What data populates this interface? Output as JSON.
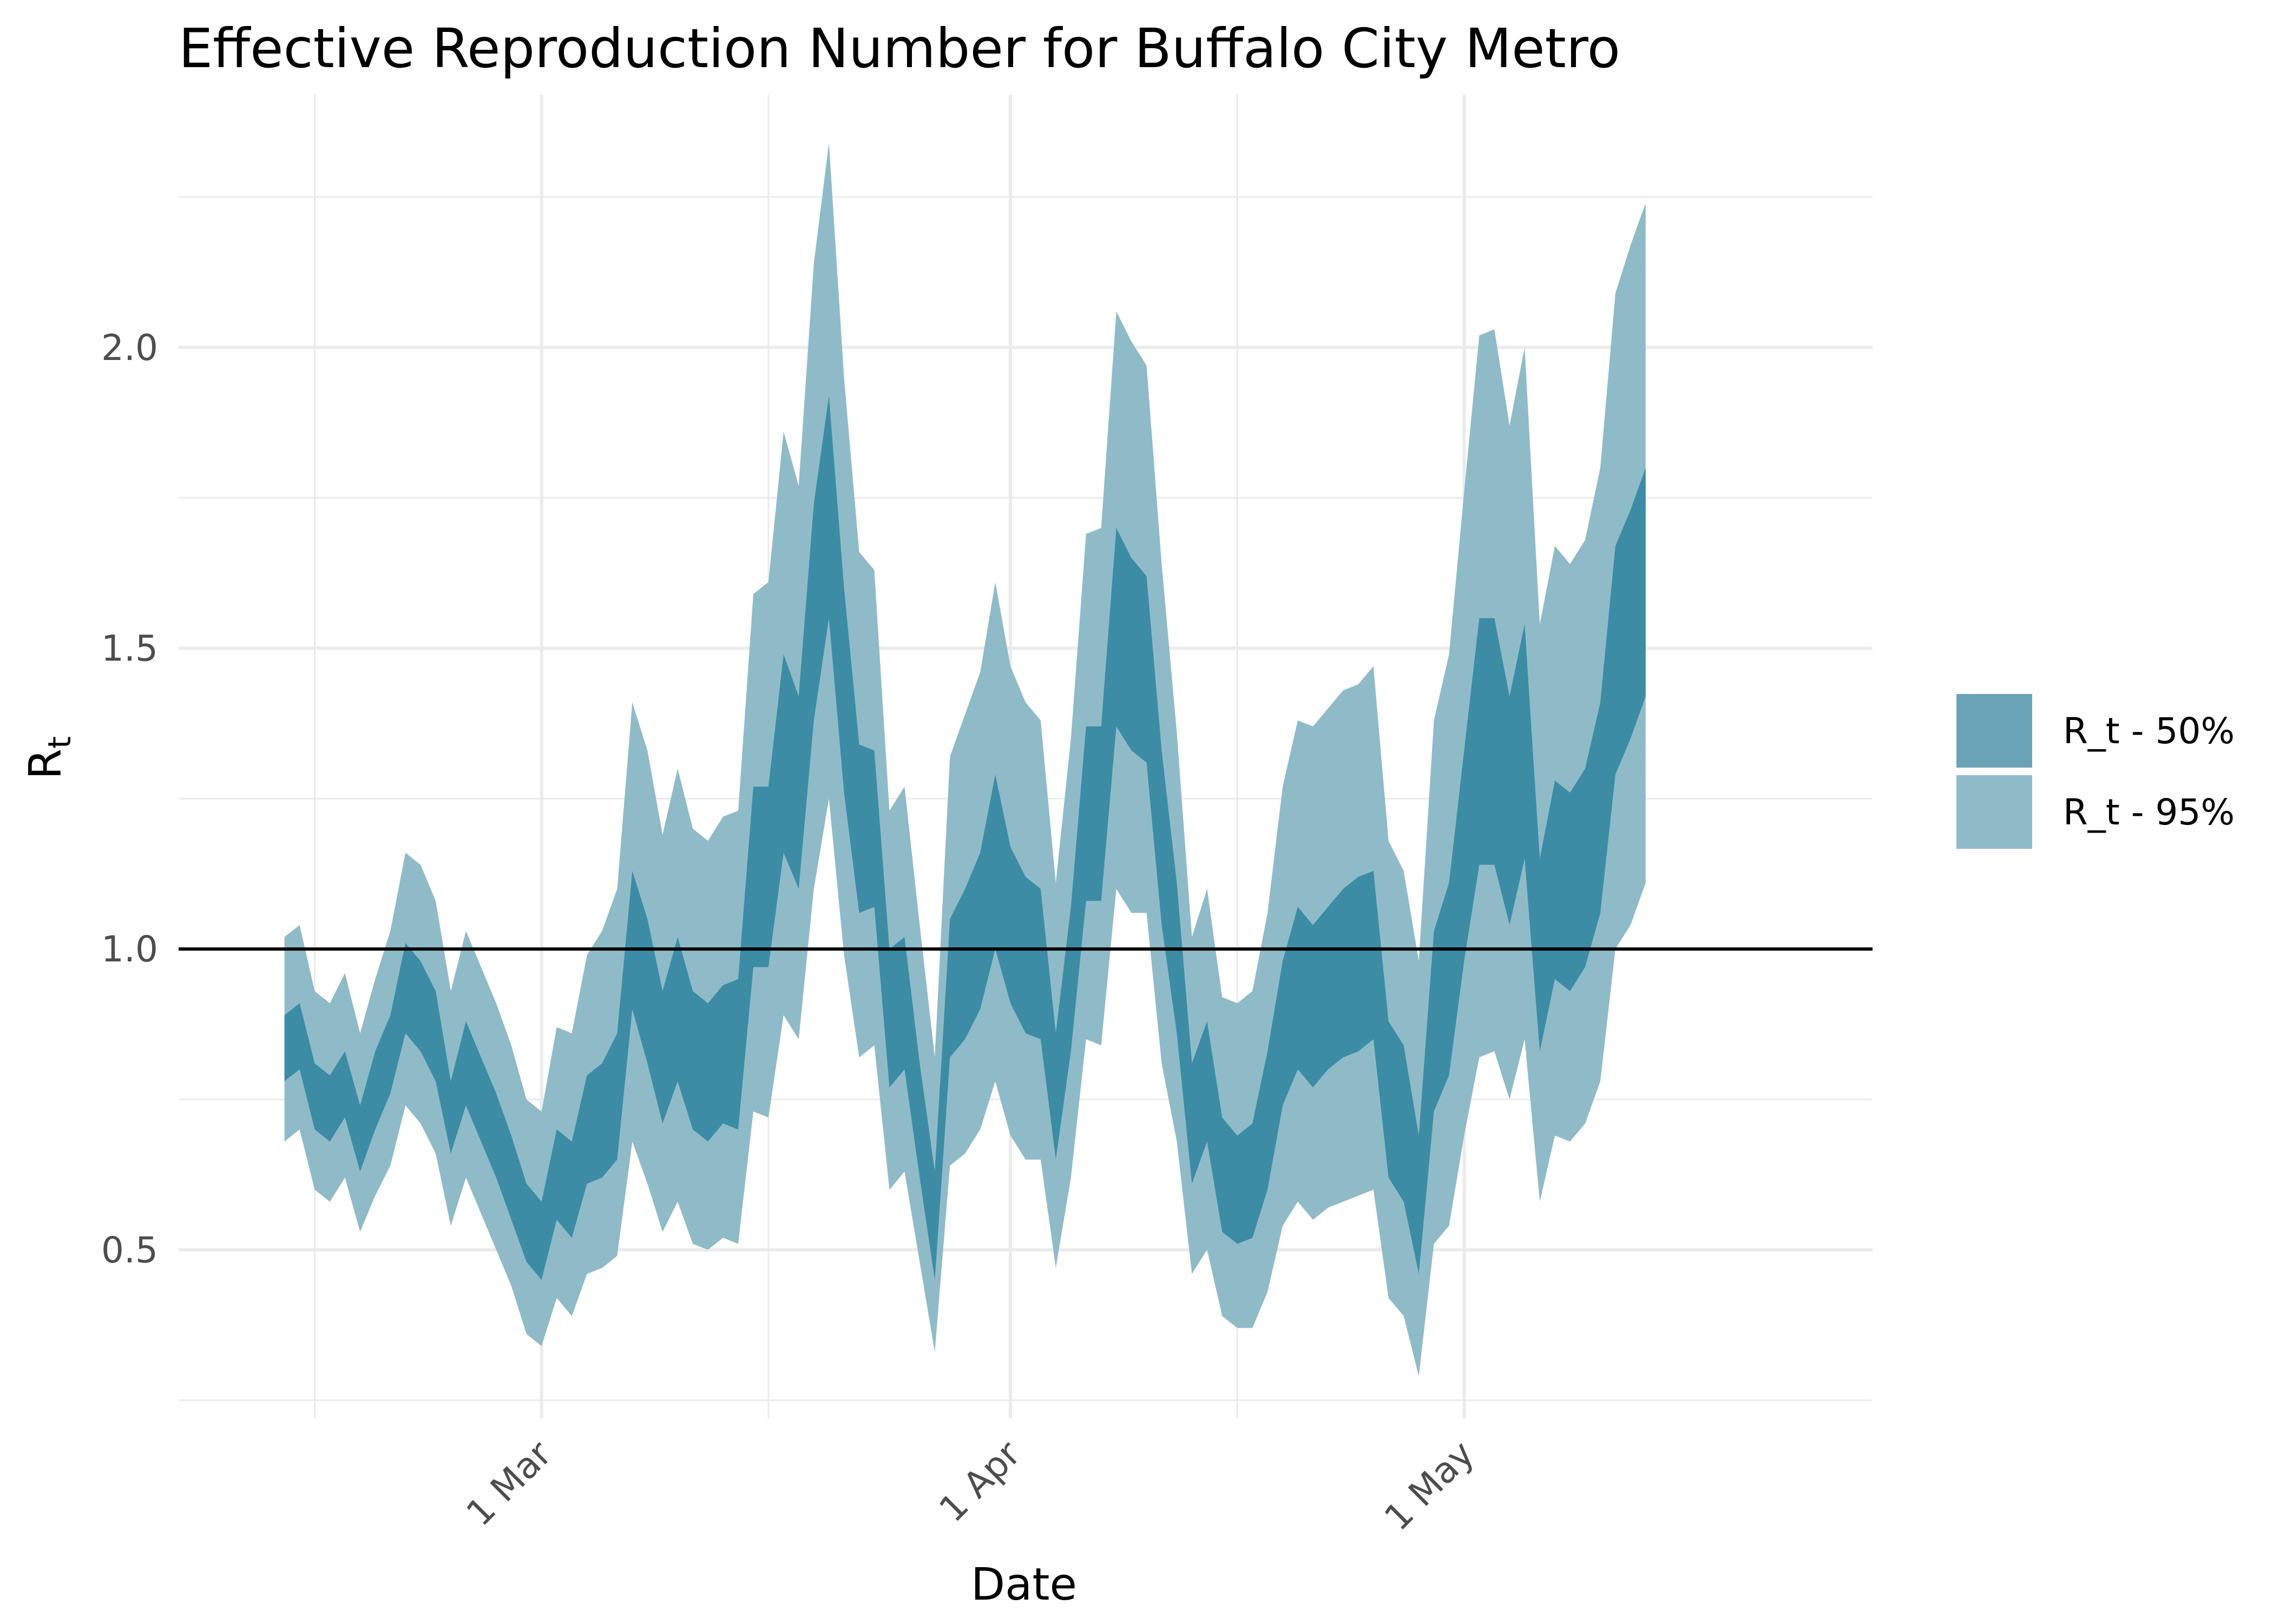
{
  "chart_data": {
    "type": "area",
    "title": "Effective Reproduction Number for Buffalo City Metro",
    "xlabel": "Date",
    "ylabel": "R",
    "ylabel_subscript": "t",
    "x_start": "2020-02-13",
    "x_end": "2020-05-13",
    "xlim": [
      "2020-02-06",
      "2020-05-28"
    ],
    "ylim": [
      0.22,
      2.42
    ],
    "x_ticks": [
      {
        "date": "2020-03-01",
        "label": "1 Mar"
      },
      {
        "date": "2020-04-01",
        "label": "1 Apr"
      },
      {
        "date": "2020-05-01",
        "label": "1 May"
      }
    ],
    "x_minor_ticks": [
      "2020-02-15",
      "2020-03-16",
      "2020-04-16"
    ],
    "y_ticks": [
      {
        "value": 0.5,
        "label": "0.5"
      },
      {
        "value": 1.0,
        "label": "1.0"
      },
      {
        "value": 1.5,
        "label": "1.5"
      },
      {
        "value": 2.0,
        "label": "2.0"
      }
    ],
    "y_minor_ticks": [
      0.25,
      0.75,
      1.25,
      1.75,
      2.25
    ],
    "reference_line": 1.0,
    "grid": true,
    "legend_position": "right",
    "series": [
      {
        "name": "R_t - 95%",
        "color": "#8fbbc9",
        "upper": [
          1.02,
          1.04,
          0.93,
          0.91,
          0.96,
          0.86,
          0.95,
          1.03,
          1.16,
          1.14,
          1.08,
          0.93,
          1.03,
          0.97,
          0.91,
          0.84,
          0.75,
          0.73,
          0.87,
          0.86,
          0.99,
          1.03,
          1.1,
          1.41,
          1.33,
          1.19,
          1.3,
          1.2,
          1.18,
          1.22,
          1.23,
          1.59,
          1.61,
          1.86,
          1.77,
          2.14,
          2.34,
          1.95,
          1.66,
          1.63,
          1.23,
          1.27,
          1.04,
          0.82,
          1.32,
          1.39,
          1.46,
          1.61,
          1.47,
          1.41,
          1.38,
          1.11,
          1.35,
          1.69,
          1.7,
          2.06,
          2.01,
          1.97,
          1.64,
          1.36,
          1.02,
          1.1,
          0.92,
          0.91,
          0.93,
          1.06,
          1.27,
          1.38,
          1.37,
          1.4,
          1.43,
          1.44,
          1.47,
          1.18,
          1.13,
          0.98,
          1.38,
          1.49,
          1.76,
          2.02,
          2.03,
          1.87,
          2.0,
          1.54,
          1.67,
          1.64,
          1.68,
          1.8,
          2.09,
          2.17,
          2.24
        ],
        "lower": [
          0.68,
          0.7,
          0.6,
          0.58,
          0.62,
          0.53,
          0.59,
          0.64,
          0.74,
          0.71,
          0.66,
          0.54,
          0.62,
          0.56,
          0.5,
          0.44,
          0.36,
          0.34,
          0.42,
          0.39,
          0.46,
          0.47,
          0.49,
          0.68,
          0.61,
          0.53,
          0.58,
          0.51,
          0.5,
          0.52,
          0.51,
          0.73,
          0.72,
          0.89,
          0.85,
          1.1,
          1.25,
          0.99,
          0.82,
          0.84,
          0.6,
          0.63,
          0.48,
          0.33,
          0.64,
          0.66,
          0.7,
          0.78,
          0.69,
          0.65,
          0.65,
          0.47,
          0.62,
          0.85,
          0.84,
          1.1,
          1.06,
          1.06,
          0.81,
          0.68,
          0.46,
          0.5,
          0.39,
          0.37,
          0.37,
          0.43,
          0.54,
          0.58,
          0.55,
          0.57,
          0.58,
          0.59,
          0.6,
          0.42,
          0.39,
          0.29,
          0.51,
          0.54,
          0.69,
          0.82,
          0.83,
          0.75,
          0.85,
          0.58,
          0.69,
          0.68,
          0.71,
          0.78,
          1.0,
          1.04,
          1.11
        ]
      },
      {
        "name": "R_t - 50%",
        "color": "#3c8ca6",
        "upper": [
          0.89,
          0.91,
          0.81,
          0.79,
          0.83,
          0.74,
          0.83,
          0.89,
          1.01,
          0.98,
          0.93,
          0.78,
          0.88,
          0.82,
          0.76,
          0.69,
          0.61,
          0.58,
          0.7,
          0.68,
          0.79,
          0.81,
          0.86,
          1.13,
          1.05,
          0.93,
          1.02,
          0.93,
          0.91,
          0.94,
          0.95,
          1.27,
          1.27,
          1.49,
          1.42,
          1.74,
          1.92,
          1.6,
          1.34,
          1.33,
          1.0,
          1.02,
          0.81,
          0.63,
          1.05,
          1.1,
          1.16,
          1.29,
          1.17,
          1.12,
          1.1,
          0.86,
          1.07,
          1.37,
          1.37,
          1.7,
          1.65,
          1.62,
          1.33,
          1.11,
          0.81,
          0.88,
          0.72,
          0.69,
          0.71,
          0.83,
          0.98,
          1.07,
          1.04,
          1.07,
          1.1,
          1.12,
          1.13,
          0.88,
          0.84,
          0.69,
          1.03,
          1.11,
          1.33,
          1.55,
          1.55,
          1.42,
          1.54,
          1.15,
          1.28,
          1.26,
          1.3,
          1.41,
          1.67,
          1.73,
          1.8
        ],
        "lower": [
          0.78,
          0.8,
          0.7,
          0.68,
          0.72,
          0.63,
          0.7,
          0.76,
          0.86,
          0.83,
          0.78,
          0.66,
          0.74,
          0.68,
          0.62,
          0.55,
          0.48,
          0.45,
          0.55,
          0.52,
          0.61,
          0.62,
          0.65,
          0.9,
          0.81,
          0.71,
          0.78,
          0.7,
          0.68,
          0.71,
          0.7,
          0.97,
          0.97,
          1.16,
          1.1,
          1.38,
          1.55,
          1.26,
          1.06,
          1.07,
          0.77,
          0.8,
          0.62,
          0.45,
          0.82,
          0.85,
          0.9,
          1.0,
          0.91,
          0.86,
          0.85,
          0.65,
          0.83,
          1.08,
          1.08,
          1.37,
          1.33,
          1.31,
          1.04,
          0.86,
          0.61,
          0.68,
          0.53,
          0.51,
          0.52,
          0.6,
          0.74,
          0.8,
          0.77,
          0.8,
          0.82,
          0.83,
          0.85,
          0.62,
          0.58,
          0.46,
          0.73,
          0.79,
          0.98,
          1.14,
          1.14,
          1.04,
          1.15,
          0.83,
          0.95,
          0.93,
          0.97,
          1.06,
          1.29,
          1.35,
          1.42
        ]
      }
    ],
    "legend": [
      {
        "label": "R_t - 50%",
        "color": "#6aa3b6"
      },
      {
        "label": "R_t - 95%",
        "color": "#8fbbc9"
      }
    ]
  }
}
